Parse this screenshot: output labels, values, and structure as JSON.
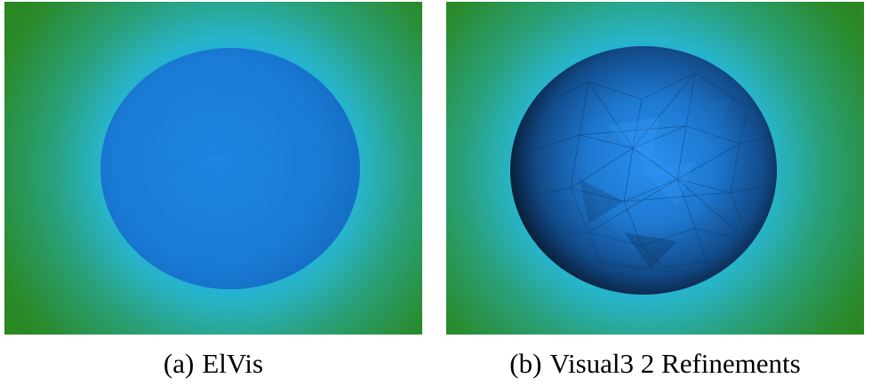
{
  "figures": [
    {
      "tag": "(a)",
      "caption": "ElVis"
    },
    {
      "tag": "(b)",
      "caption": "Visual3 2 Refinements"
    }
  ],
  "colors": {
    "background_outer": "#2a8a1a",
    "background_mid": "#2ab0a0",
    "halo": "#1aa8e8",
    "sphere_smooth": "#1a7ed8",
    "sphere_faceted_dark": "#0a2a4a",
    "sphere_faceted_light": "#2a8ef0"
  }
}
